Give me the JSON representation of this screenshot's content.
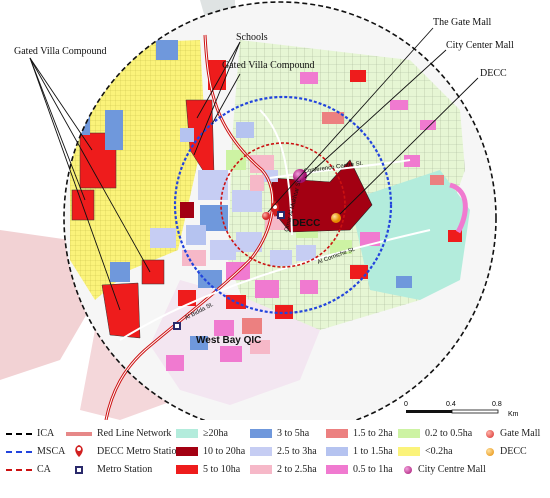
{
  "annotations": {
    "gated_villa_left": "Gated Villa Compound",
    "schools": "Schools",
    "gated_villa_mid": "Gated Villa Compound",
    "gate_mall": "The Gate Mall",
    "city_center_mall": "City Center Mall",
    "decc": "DECC",
    "decc_site": "DECC",
    "west_bay": "West Bay QIC"
  },
  "streets": {
    "conference": "Conference Centre St.",
    "omar_mukhtar": "Omar Al Mukhtar St.",
    "al_bidda": "Al Bidda St.",
    "al_corniche": "Al Corniche St."
  },
  "scale": {
    "ticks": [
      "0",
      "0.4",
      "0.8"
    ],
    "unit": "Km"
  },
  "legend": {
    "ica": "ICA",
    "msca": "MSCA",
    "ca": "CA",
    "red_line": "Red Line Network",
    "decc_metro": "DECC Metro Station",
    "metro": "Metro Station",
    "c_ge20": "≥20ha",
    "c_10_20": "10 to 20ha",
    "c_5_10": "5 to 10ha",
    "c_3_5": "3 to 5ha",
    "c_25_3": "2.5 to 3ha",
    "c_2_25": "2 to 2.5ha",
    "c_15_2": "1.5 to 2ha",
    "c_1_15": "1 to 1.5ha",
    "c_05_1": "0.5 to 1ha",
    "c_02_05": "0.2 to 0.5ha",
    "c_lt02": "<0.2ha",
    "gate_mall": "Gate Mall",
    "decc": "DECC",
    "city_centre": "City Centre Mall"
  },
  "colors": {
    "ge20": "#b3ecdc",
    "c10_20": "#a30012",
    "c5_10": "#ee1c1c",
    "c3_5": "#6f98dc",
    "c25_3": "#c6cdf3",
    "c2_25": "#f6b8c8",
    "c15_2": "#ec8080",
    "c1_15": "#b5c3f0",
    "c05_1": "#f07ad0",
    "c02_05": "#cdf3a3",
    "lt02": "#fbf37a",
    "ica": "#000000",
    "msca": "#2244dd",
    "ca": "#cc1111",
    "red_line": "#cc1111",
    "gate_mall_dot": "#e23b3b",
    "decc_dot": "#f29a1d",
    "city_centre_dot": "#c2148a"
  }
}
